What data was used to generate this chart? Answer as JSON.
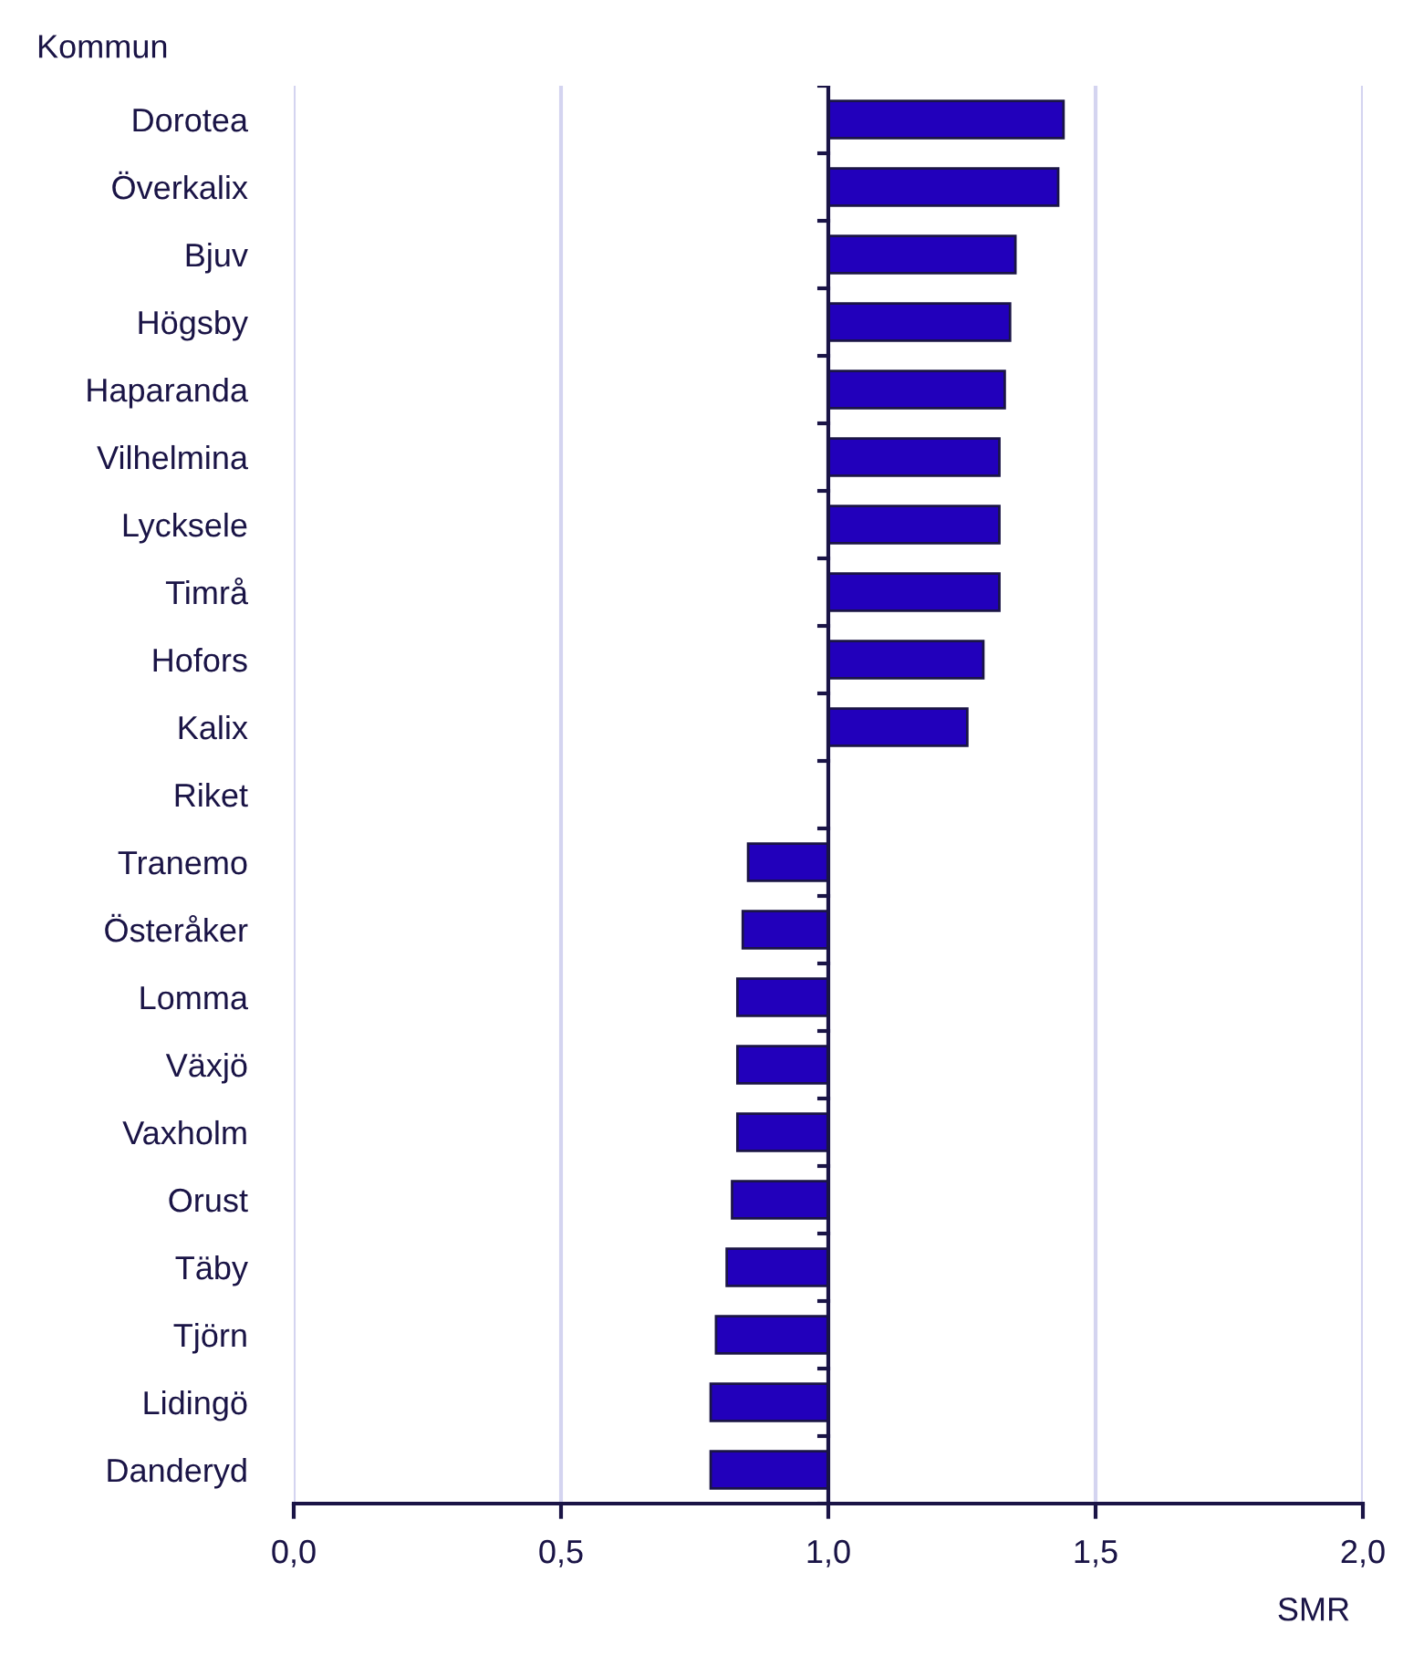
{
  "chart_data": {
    "type": "bar",
    "orientation": "horizontal",
    "ylabel": "Kommun",
    "xlabel": "SMR",
    "categories": [
      "Dorotea",
      "Överkalix",
      "Bjuv",
      "Högsby",
      "Haparanda",
      "Vilhelmina",
      "Lycksele",
      "Timrå",
      "Hofors",
      "Kalix",
      "Riket",
      "Tranemo",
      "Österåker",
      "Lomma",
      "Växjö",
      "Vaxholm",
      "Orust",
      "Täby",
      "Tjörn",
      "Lidingö",
      "Danderyd"
    ],
    "base": [
      1,
      1,
      1,
      1,
      1,
      1,
      1,
      1,
      1,
      1,
      null,
      1,
      1,
      1,
      1,
      1,
      1,
      1,
      1,
      1,
      1
    ],
    "values": [
      0.44,
      0.43,
      0.35,
      0.34,
      0.33,
      0.32,
      0.32,
      0.32,
      0.29,
      0.26,
      null,
      -0.15,
      -0.16,
      -0.17,
      -0.17,
      -0.17,
      -0.18,
      -0.19,
      -0.21,
      -0.22,
      -0.22
    ],
    "color": "#2200bb",
    "xlim": [
      0,
      2
    ],
    "xticks": [
      {
        "value": 0,
        "label": "0,0"
      },
      {
        "value": 0.5,
        "label": "0,5"
      },
      {
        "value": 1,
        "label": "1,0"
      },
      {
        "value": 1.5,
        "label": "1,5"
      },
      {
        "value": 2,
        "label": "2,0"
      }
    ],
    "ref_lines": [
      {
        "axis": "x",
        "value": 1,
        "color": "#1a1446"
      }
    ],
    "grid": "x",
    "legend": false
  }
}
